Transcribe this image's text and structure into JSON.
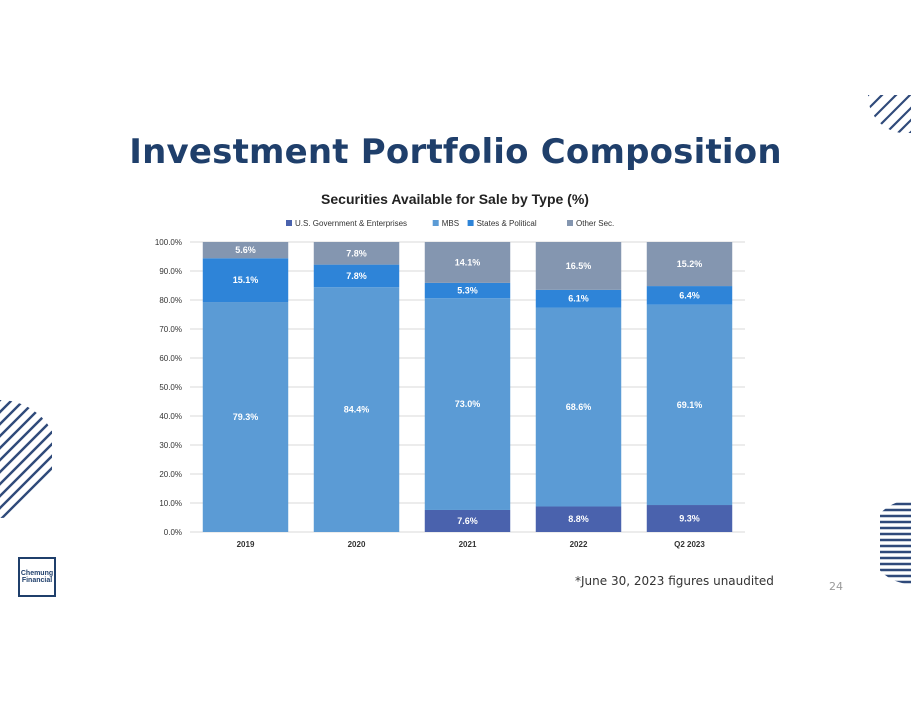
{
  "slide": {
    "title": "Investment Portfolio Composition",
    "footnote": "*June 30, 2023 figures unaudited",
    "page_number": "24",
    "logo_lines": [
      "Chemung",
      "Financial"
    ]
  },
  "colors": {
    "title": "#1f3f6b",
    "us_gov": "#4a62ad",
    "mbs": "#5b9bd5",
    "states_political": "#2e84d8",
    "other": "#8496b0",
    "grid": "#d9d9d9",
    "deco": "#2f4a7a"
  },
  "chart_data": {
    "type": "bar",
    "stacked": true,
    "title": "Securities Available for Sale by Type (%)",
    "categories": [
      "2019",
      "2020",
      "2021",
      "2022",
      "Q2 2023"
    ],
    "series": [
      {
        "name": "U.S. Government & Enterprises",
        "color": "#4a62ad",
        "values": [
          0,
          0,
          7.6,
          8.8,
          9.3
        ],
        "labels": [
          "",
          "",
          "7.6%",
          "8.8%",
          "9.3%"
        ]
      },
      {
        "name": "MBS",
        "color": "#5b9bd5",
        "values": [
          79.3,
          84.4,
          73.0,
          68.6,
          69.1
        ],
        "labels": [
          "79.3%",
          "84.4%",
          "73.0%",
          "68.6%",
          "69.1%"
        ]
      },
      {
        "name": "States & Political",
        "color": "#2e84d8",
        "values": [
          15.1,
          7.8,
          5.3,
          6.1,
          6.4
        ],
        "labels": [
          "15.1%",
          "7.8%",
          "5.3%",
          "6.1%",
          "6.4%"
        ]
      },
      {
        "name": "Other Sec.",
        "color": "#8496b0",
        "values": [
          5.6,
          7.8,
          14.1,
          16.5,
          15.2
        ],
        "labels": [
          "5.6%",
          "7.8%",
          "14.1%",
          "16.5%",
          "15.2%"
        ]
      }
    ],
    "ylim": [
      0,
      100
    ],
    "yticks": [
      "0.0%",
      "10.0%",
      "20.0%",
      "30.0%",
      "40.0%",
      "50.0%",
      "60.0%",
      "70.0%",
      "80.0%",
      "90.0%",
      "100.0%"
    ],
    "grid": true,
    "legend_position": "top"
  }
}
